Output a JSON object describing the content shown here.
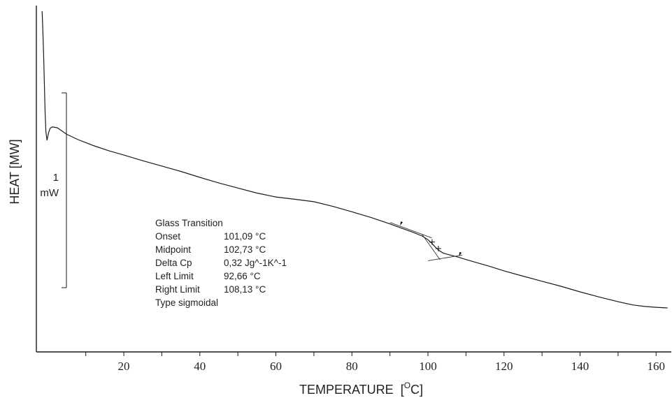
{
  "chart_data": {
    "type": "line",
    "xlabel": "TEMPERATURE",
    "xlabel_unit_sup": "O",
    "xlabel_unit_tail": "C]",
    "xlabel_unit_open": "[",
    "ylabel": "HEAT [MW]",
    "xlim": [
      -3,
      164
    ],
    "x_ticks": [
      20,
      40,
      60,
      80,
      100,
      120,
      140,
      160
    ],
    "scale_bar": {
      "value": "1",
      "unit": "mW"
    },
    "series": [
      {
        "color": "#1a1a1a",
        "points": [
          [
            -1.5,
            0.0
          ],
          [
            -1.3,
            6.0
          ],
          [
            -1.1,
            14.0
          ],
          [
            -0.9,
            24.0
          ],
          [
            -0.7,
            34.0
          ],
          [
            -0.5,
            40.5
          ],
          [
            -0.2,
            43.5
          ],
          [
            0.2,
            41.0
          ],
          [
            0.6,
            39.5
          ],
          [
            1.2,
            39.0
          ],
          [
            2.5,
            39.3
          ],
          [
            5,
            41.5
          ],
          [
            8,
            43.3
          ],
          [
            12,
            45.3
          ],
          [
            16,
            47.0
          ],
          [
            20,
            48.5
          ],
          [
            25,
            50.4
          ],
          [
            30,
            52.2
          ],
          [
            35,
            54.0
          ],
          [
            40,
            56.0
          ],
          [
            45,
            57.9
          ],
          [
            50,
            59.6
          ],
          [
            55,
            61.3
          ],
          [
            60,
            62.6
          ],
          [
            65,
            63.4
          ],
          [
            70,
            64.2
          ],
          [
            75,
            65.8
          ],
          [
            80,
            67.6
          ],
          [
            85,
            69.5
          ],
          [
            90,
            71.7
          ],
          [
            93,
            73.1
          ],
          [
            96,
            74.5
          ],
          [
            98.5,
            75.8
          ],
          [
            100,
            77.0
          ],
          [
            101,
            78.2
          ],
          [
            102,
            79.6
          ],
          [
            103,
            80.7
          ],
          [
            104,
            81.5
          ],
          [
            105,
            81.9
          ],
          [
            106,
            82.2
          ],
          [
            108,
            82.9
          ],
          [
            110,
            83.7
          ],
          [
            113,
            84.8
          ],
          [
            116,
            85.9
          ],
          [
            120,
            87.5
          ],
          [
            125,
            89.3
          ],
          [
            130,
            91.0
          ],
          [
            135,
            92.7
          ],
          [
            140,
            94.6
          ],
          [
            145,
            96.3
          ],
          [
            150,
            97.9
          ],
          [
            154,
            99.0
          ],
          [
            157,
            99.5
          ],
          [
            160,
            99.8
          ],
          [
            163,
            100.0
          ]
        ]
      }
    ],
    "tangent_lines": [
      {
        "from": [
          90,
          71.2
        ],
        "to": [
          101,
          76.4
        ]
      },
      {
        "from": [
          100,
          84.1
        ],
        "to": [
          109,
          82.2
        ]
      },
      {
        "from": [
          98.5,
          75.3
        ],
        "to": [
          103.2,
          83.8
        ]
      }
    ],
    "markers": [
      {
        "x": 92.66,
        "y": 72.5,
        "label": "left-limit"
      },
      {
        "x": 101.09,
        "y": 77.8,
        "label": "onset"
      },
      {
        "x": 102.73,
        "y": 80.0,
        "label": "midpoint"
      },
      {
        "x": 108.13,
        "y": 82.8,
        "label": "right-limit"
      }
    ],
    "annotation": {
      "title": "Glass Transition",
      "rows": [
        {
          "label": "Onset",
          "value": "101,09 °C"
        },
        {
          "label": "Midpoint",
          "value": "102,73 °C"
        },
        {
          "label": "Delta Cp",
          "value": "0,32 Jg^-1K^-1"
        },
        {
          "label": "Left Limit",
          "value": "92,66 °C"
        },
        {
          "label": "Right Limit",
          "value": "108,13 °C"
        }
      ],
      "footer": "Type sigmoidal"
    }
  }
}
